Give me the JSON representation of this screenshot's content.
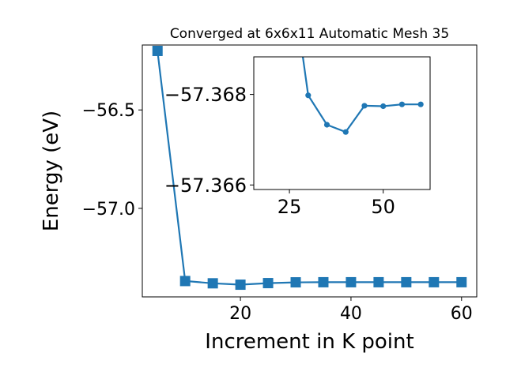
{
  "chart_data": [
    {
      "type": "line",
      "title": "Converged at 6x6x11 Automatic Mesh 35",
      "xlabel": "Increment in K point",
      "ylabel": "Energy (eV)",
      "xlim": [
        2.25,
        62.75
      ],
      "ylim": [
        -57.45,
        -56.17
      ],
      "x_ticks": [
        20,
        40,
        60
      ],
      "y_ticks": [
        -56.5,
        -57.0
      ],
      "x_tick_labels": [
        "20",
        "40",
        "60"
      ],
      "y_tick_labels": [
        "−56.5",
        "−57.0"
      ],
      "grid": false,
      "marker": "square",
      "color": "#1f77b4",
      "series": [
        {
          "x": [
            5,
            10,
            15,
            20,
            25,
            30,
            35,
            40,
            45,
            50,
            55,
            60
          ],
          "y": [
            -56.2,
            -57.3695,
            -57.381,
            -57.388,
            -57.38,
            -57.376,
            -57.3755,
            -57.3755,
            -57.3755,
            -57.3755,
            -57.3755,
            -57.3755
          ]
        }
      ]
    },
    {
      "type": "line",
      "role": "inset",
      "title": "",
      "xlabel": "",
      "ylabel": "",
      "xlim": [
        15.5,
        62.5
      ],
      "ylim": [
        -57.3659,
        -57.36883
      ],
      "x_ticks": [
        25,
        50
      ],
      "y_ticks": [
        -57.368,
        -57.366
      ],
      "x_tick_labels": [
        "25",
        "50"
      ],
      "y_tick_labels": [
        "−57.368",
        "−57.366"
      ],
      "grid": false,
      "marker": "circle",
      "color": "#1f77b4",
      "series": [
        {
          "x": [
            30,
            35,
            40,
            45,
            50,
            55,
            60
          ],
          "y": [
            -57.36798,
            -57.36733,
            -57.36717,
            -57.36775,
            -57.36774,
            -57.36778,
            -57.36778
          ]
        }
      ]
    }
  ]
}
